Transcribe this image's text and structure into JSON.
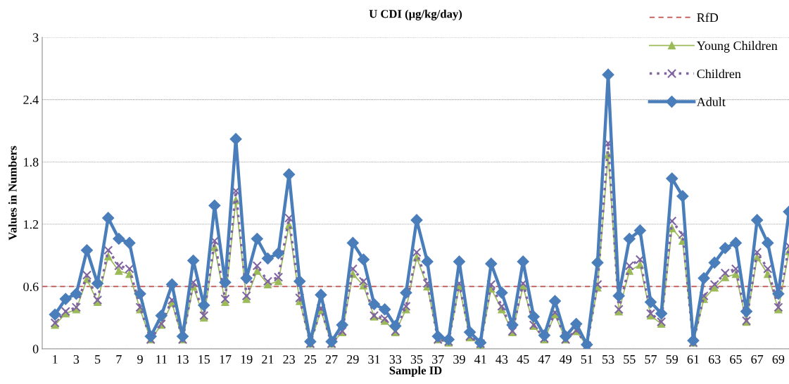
{
  "chart_data": {
    "type": "line",
    "title": "U CDI (μg/kg/day)",
    "xlabel": "Sample ID",
    "ylabel": "Values in Numbers",
    "categories": [
      "1",
      null,
      "3",
      null,
      "5",
      null,
      "7",
      null,
      "9",
      null,
      "11",
      null,
      "13",
      null,
      "15",
      null,
      "17",
      null,
      "19",
      null,
      "21",
      null,
      "23",
      null,
      "25",
      null,
      "27",
      null,
      "29",
      null,
      "31",
      null,
      "33",
      null,
      "35",
      null,
      "37",
      null,
      "39",
      null,
      "41",
      null,
      "43",
      null,
      "45",
      null,
      "47",
      null,
      "49",
      null,
      "51",
      null,
      "53",
      null,
      "55",
      null,
      "57",
      null,
      "59",
      null,
      "61",
      null,
      "63",
      null,
      "65",
      null,
      "67",
      null,
      "69",
      null
    ],
    "series": [
      {
        "name": "Young Children",
        "color": "#9bbb59",
        "marker": "triangle",
        "line_style": "solid",
        "values": [
          0.23,
          0.34,
          0.38,
          0.67,
          0.45,
          0.89,
          0.75,
          0.72,
          0.38,
          0.09,
          0.23,
          0.44,
          0.09,
          0.6,
          0.3,
          0.98,
          0.45,
          1.43,
          0.48,
          0.75,
          0.62,
          0.65,
          1.19,
          0.46,
          0.05,
          0.37,
          0.05,
          0.16,
          0.72,
          0.61,
          0.31,
          0.27,
          0.16,
          0.38,
          0.88,
          0.6,
          0.09,
          0.06,
          0.6,
          0.11,
          0.04,
          0.58,
          0.38,
          0.16,
          0.6,
          0.22,
          0.09,
          0.33,
          0.09,
          0.17,
          0.03,
          0.59,
          1.87,
          0.36,
          0.75,
          0.81,
          0.32,
          0.24,
          1.16,
          1.04,
          0.06,
          0.48,
          0.59,
          0.69,
          0.72,
          0.26,
          0.88,
          0.72,
          0.38,
          0.94
        ]
      },
      {
        "name": "Children",
        "color": "#8064a2",
        "marker": "cross",
        "line_style": "dotted",
        "values": [
          0.25,
          0.36,
          0.4,
          0.71,
          0.47,
          0.95,
          0.8,
          0.77,
          0.4,
          0.09,
          0.24,
          0.47,
          0.09,
          0.64,
          0.32,
          1.04,
          0.48,
          1.52,
          0.51,
          0.8,
          0.65,
          0.69,
          1.26,
          0.49,
          0.05,
          0.39,
          0.05,
          0.17,
          0.77,
          0.65,
          0.32,
          0.29,
          0.17,
          0.41,
          0.93,
          0.63,
          0.09,
          0.07,
          0.63,
          0.12,
          0.05,
          0.62,
          0.41,
          0.17,
          0.63,
          0.23,
          0.1,
          0.35,
          0.09,
          0.18,
          0.03,
          0.62,
          1.98,
          0.38,
          0.8,
          0.86,
          0.34,
          0.26,
          1.23,
          1.1,
          0.06,
          0.51,
          0.62,
          0.73,
          0.77,
          0.27,
          0.93,
          0.77,
          0.4,
          0.99
        ]
      },
      {
        "name": "Adult",
        "color": "#4a7ebb",
        "marker": "diamond",
        "line_style": "solid",
        "values": [
          0.33,
          0.48,
          0.53,
          0.95,
          0.63,
          1.26,
          1.06,
          1.02,
          0.53,
          0.12,
          0.32,
          0.62,
          0.12,
          0.85,
          0.42,
          1.38,
          0.64,
          2.02,
          0.68,
          1.06,
          0.87,
          0.92,
          1.68,
          0.65,
          0.07,
          0.52,
          0.07,
          0.23,
          1.02,
          0.86,
          0.43,
          0.38,
          0.22,
          0.54,
          1.24,
          0.84,
          0.12,
          0.09,
          0.84,
          0.16,
          0.06,
          0.82,
          0.54,
          0.23,
          0.84,
          0.31,
          0.13,
          0.46,
          0.12,
          0.24,
          0.04,
          0.83,
          2.64,
          0.51,
          1.06,
          1.14,
          0.45,
          0.34,
          1.64,
          1.47,
          0.08,
          0.68,
          0.83,
          0.97,
          1.02,
          0.36,
          1.24,
          1.02,
          0.53,
          1.32
        ]
      }
    ],
    "ref_lines": [
      {
        "axis": "y",
        "value": 0.6,
        "label": "RfD",
        "color": "#c0504d",
        "line_style": "dashed"
      }
    ],
    "ylim": [
      0,
      3
    ],
    "yticks": [
      0,
      0.6,
      1.2,
      1.8,
      2.4,
      3
    ],
    "grid": "y",
    "legend": "top right"
  }
}
